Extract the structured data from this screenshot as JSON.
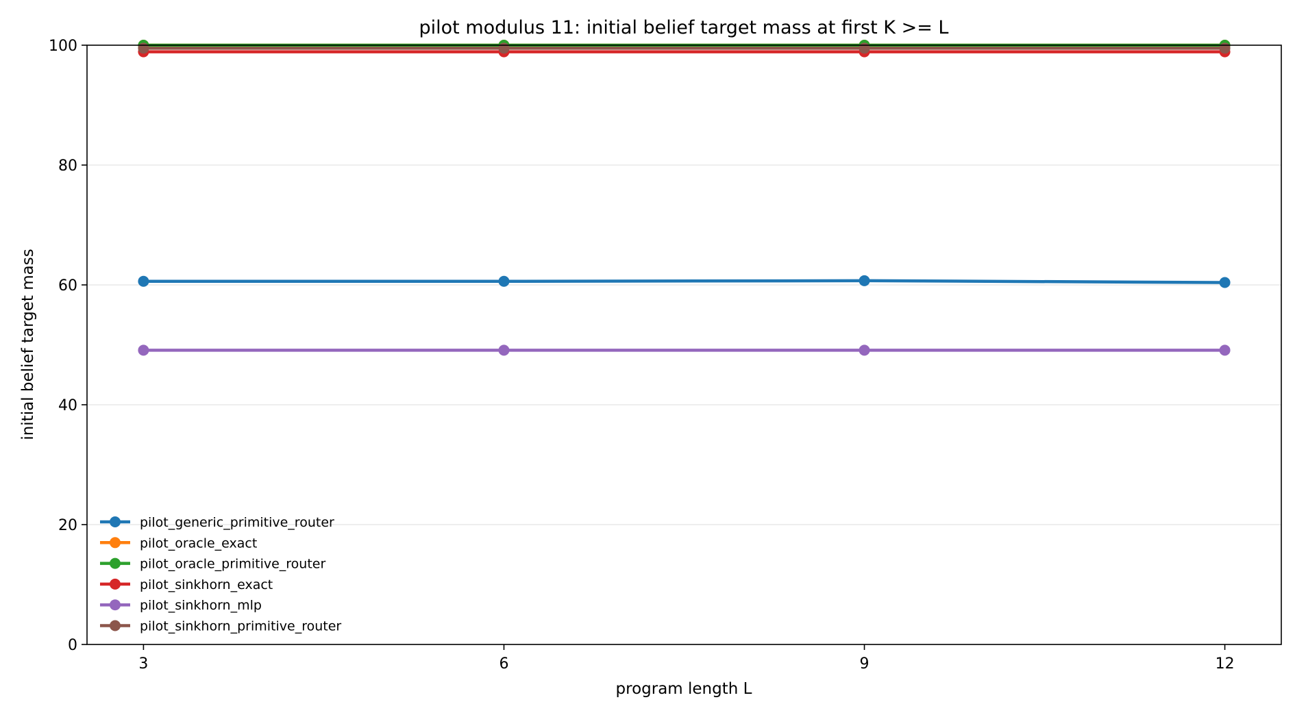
{
  "chart_data": {
    "type": "line",
    "title": "pilot modulus 11: initial belief target mass at first K >= L",
    "xlabel": "program length L",
    "ylabel": "initial belief target mass",
    "x": [
      3,
      6,
      9,
      12
    ],
    "x_ticks": [
      3,
      6,
      9,
      12
    ],
    "xlim": [
      2.53,
      12.47
    ],
    "ylim": [
      0,
      100
    ],
    "y_ticks": [
      0,
      20,
      40,
      60,
      80,
      100
    ],
    "grid": "horizontal",
    "legend_placement": "lower-left",
    "series": [
      {
        "name": "pilot_generic_primitive_router",
        "color": "#1f77b4",
        "values": [
          60.6,
          60.6,
          60.7,
          60.4
        ]
      },
      {
        "name": "pilot_oracle_exact",
        "color": "#ff7f0e",
        "values": [
          100,
          100,
          100,
          100
        ]
      },
      {
        "name": "pilot_oracle_primitive_router",
        "color": "#2ca02c",
        "values": [
          100,
          100,
          100,
          100
        ]
      },
      {
        "name": "pilot_sinkhorn_exact",
        "color": "#d62728",
        "values": [
          98.9,
          98.9,
          98.9,
          98.9
        ]
      },
      {
        "name": "pilot_sinkhorn_mlp",
        "color": "#9467bd",
        "values": [
          49.1,
          49.1,
          49.1,
          49.1
        ]
      },
      {
        "name": "pilot_sinkhorn_primitive_router",
        "color": "#8c564b",
        "values": [
          99.5,
          99.5,
          99.5,
          99.5
        ]
      }
    ]
  }
}
